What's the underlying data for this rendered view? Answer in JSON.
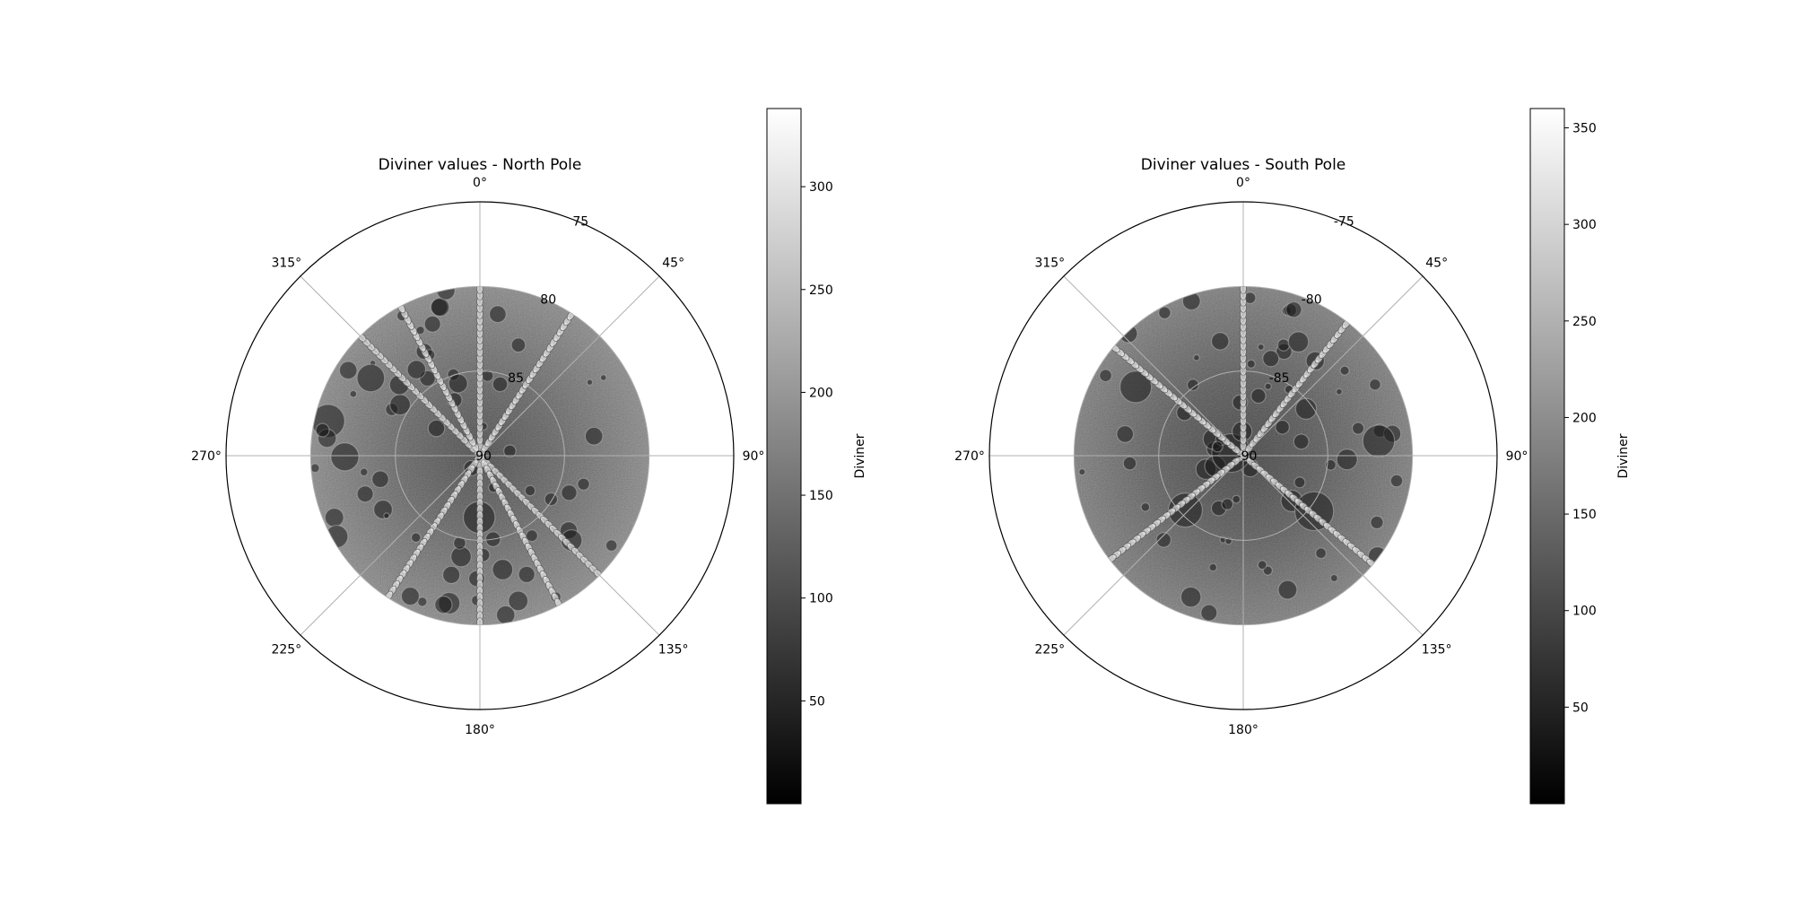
{
  "chart_data": [
    {
      "type": "heatmap",
      "projection": "polar",
      "title": "Diviner values - North Pole",
      "angle_ticks": [
        "0°",
        "45°",
        "90°",
        "135°",
        "180°",
        "225°",
        "270°",
        "315°"
      ],
      "radial_ticks": [
        "75",
        "80",
        "85",
        "90"
      ],
      "radial_tick_values": [
        75,
        80,
        85,
        90
      ],
      "r_range": [
        90,
        75
      ],
      "data_extent": [
        90,
        80
      ],
      "colormap": "gray",
      "colorbar": {
        "label": "Diviner",
        "ticks": [
          "50",
          "100",
          "150",
          "200",
          "250",
          "300"
        ],
        "tick_values": [
          50,
          100,
          150,
          200,
          250,
          300
        ],
        "range": [
          0,
          338
        ]
      },
      "orbit_tracks_deg": [
        0,
        180,
        33,
        213,
        315,
        135,
        152,
        332
      ],
      "grid": true
    },
    {
      "type": "heatmap",
      "projection": "polar",
      "title": "Diviner values - South Pole",
      "angle_ticks": [
        "0°",
        "45°",
        "90°",
        "135°",
        "180°",
        "225°",
        "270°",
        "315°"
      ],
      "radial_ticks": [
        "-75",
        "-80",
        "-85",
        "-90"
      ],
      "radial_tick_values": [
        -75,
        -80,
        -85,
        -90
      ],
      "r_range": [
        -90,
        -75
      ],
      "data_extent": [
        -90,
        -80
      ],
      "colormap": "gray",
      "colorbar": {
        "label": "Diviner",
        "ticks": [
          "50",
          "100",
          "150",
          "200",
          "250",
          "300",
          "350"
        ],
        "tick_values": [
          50,
          100,
          150,
          200,
          250,
          300,
          350
        ],
        "range": [
          0,
          360
        ]
      },
      "orbit_tracks_deg": [
        0,
        310,
        130,
        38,
        232
      ],
      "grid": true
    }
  ]
}
